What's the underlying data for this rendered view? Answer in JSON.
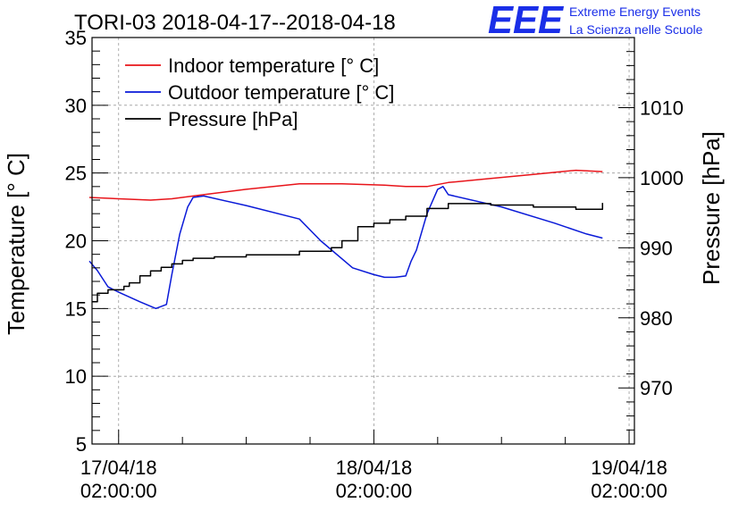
{
  "header": {
    "title": "TORI-03 2018-04-17--2018-04-18",
    "logo_text": "EEE",
    "logo_line1": "Extreme Energy Events",
    "logo_line2": "La Scienza nelle Scuole"
  },
  "colors": {
    "indoor": "#e8141a",
    "outdoor": "#0a1ad8",
    "pressure": "#000000",
    "logo": "#1a2ee8",
    "grid": "#9a9a9a"
  },
  "chart_data": {
    "type": "line",
    "title": "TORI-03 2018-04-17--2018-04-18",
    "ylabel": "Temperature [° C]",
    "y2label": "Pressure [hPa]",
    "xlabel": "",
    "ylim": [
      5,
      35
    ],
    "y2lim": [
      962,
      1020
    ],
    "xlim": [
      "2018-04-16 23:30",
      "2018-04-19 02:30"
    ],
    "yticks": [
      "5",
      "10",
      "15",
      "20",
      "25",
      "30",
      "35"
    ],
    "y2ticks": [
      "970",
      "980",
      "990",
      "1000",
      "1010"
    ],
    "xticks": [
      {
        "date": "17/04/18",
        "time": "02:00:00",
        "x": "2018-04-17 02:00"
      },
      {
        "date": "18/04/18",
        "time": "02:00:00",
        "x": "2018-04-18 02:00"
      },
      {
        "date": "19/04/18",
        "time": "02:00:00",
        "x": "2018-04-19 02:00"
      }
    ],
    "grid": true,
    "legend": "top-left",
    "series": [
      {
        "name": "Indoor temperature [° C]",
        "axis": "left",
        "x": [
          "2018-04-16 23:15",
          "2018-04-17 02:00",
          "2018-04-17 05:00",
          "2018-04-17 07:00",
          "2018-04-17 10:00",
          "2018-04-17 14:00",
          "2018-04-17 19:00",
          "2018-04-17 23:00",
          "2018-04-18 03:00",
          "2018-04-18 05:00",
          "2018-04-18 07:00",
          "2018-04-18 09:00",
          "2018-04-18 13:00",
          "2018-04-18 17:00",
          "2018-04-18 21:00",
          "2018-04-18 23:30"
        ],
        "y": [
          23.2,
          23.1,
          23.0,
          23.1,
          23.4,
          23.8,
          24.2,
          24.2,
          24.1,
          24.0,
          24.0,
          24.3,
          24.6,
          24.9,
          25.2,
          25.1
        ]
      },
      {
        "name": "Outdoor temperature [° C]",
        "axis": "left",
        "x": [
          "2018-04-16 23:15",
          "2018-04-17 00:00",
          "2018-04-17 01:00",
          "2018-04-17 02:00",
          "2018-04-17 04:00",
          "2018-04-17 05:30",
          "2018-04-17 06:30",
          "2018-04-17 07:00",
          "2018-04-17 07:45",
          "2018-04-17 08:30",
          "2018-04-17 09:00",
          "2018-04-17 10:00",
          "2018-04-17 14:00",
          "2018-04-17 19:00",
          "2018-04-17 21:00",
          "2018-04-18 00:00",
          "2018-04-18 02:00",
          "2018-04-18 03:00",
          "2018-04-18 04:00",
          "2018-04-18 05:00",
          "2018-04-18 05:30",
          "2018-04-18 06:00",
          "2018-04-18 07:00",
          "2018-04-18 08:00",
          "2018-04-18 08:30",
          "2018-04-18 09:00",
          "2018-04-18 14:00",
          "2018-04-18 19:00",
          "2018-04-18 22:00",
          "2018-04-18 23:30"
        ],
        "y": [
          18.5,
          17.8,
          16.6,
          16.2,
          15.5,
          15.0,
          15.3,
          17.5,
          20.5,
          22.5,
          23.2,
          23.3,
          22.6,
          21.6,
          20.0,
          18.0,
          17.5,
          17.3,
          17.3,
          17.4,
          18.5,
          19.3,
          22.0,
          23.8,
          24.0,
          23.4,
          22.5,
          21.3,
          20.5,
          20.2
        ]
      },
      {
        "name": "Pressure [hPa]",
        "axis": "right",
        "x": [
          "2018-04-16 23:30",
          "2018-04-17 00:00",
          "2018-04-17 01:00",
          "2018-04-17 02:30",
          "2018-04-17 03:00",
          "2018-04-17 04:00",
          "2018-04-17 05:00",
          "2018-04-17 06:00",
          "2018-04-17 07:00",
          "2018-04-17 08:00",
          "2018-04-17 09:00",
          "2018-04-17 11:00",
          "2018-04-17 14:00",
          "2018-04-17 19:00",
          "2018-04-17 22:00",
          "2018-04-17 23:00",
          "2018-04-18 00:30",
          "2018-04-18 02:00",
          "2018-04-18 03:30",
          "2018-04-18 05:00",
          "2018-04-18 07:00",
          "2018-04-18 09:00",
          "2018-04-18 13:00",
          "2018-04-18 17:00",
          "2018-04-18 21:00",
          "2018-04-18 23:30"
        ],
        "y": [
          982.3,
          983.5,
          984.0,
          984.5,
          985.0,
          986.0,
          986.7,
          987.2,
          987.7,
          988.2,
          988.5,
          988.7,
          989.0,
          989.5,
          990.0,
          991.0,
          993.0,
          993.5,
          994.0,
          994.5,
          995.6,
          996.3,
          996.1,
          995.8,
          995.5,
          996.4
        ]
      }
    ]
  }
}
